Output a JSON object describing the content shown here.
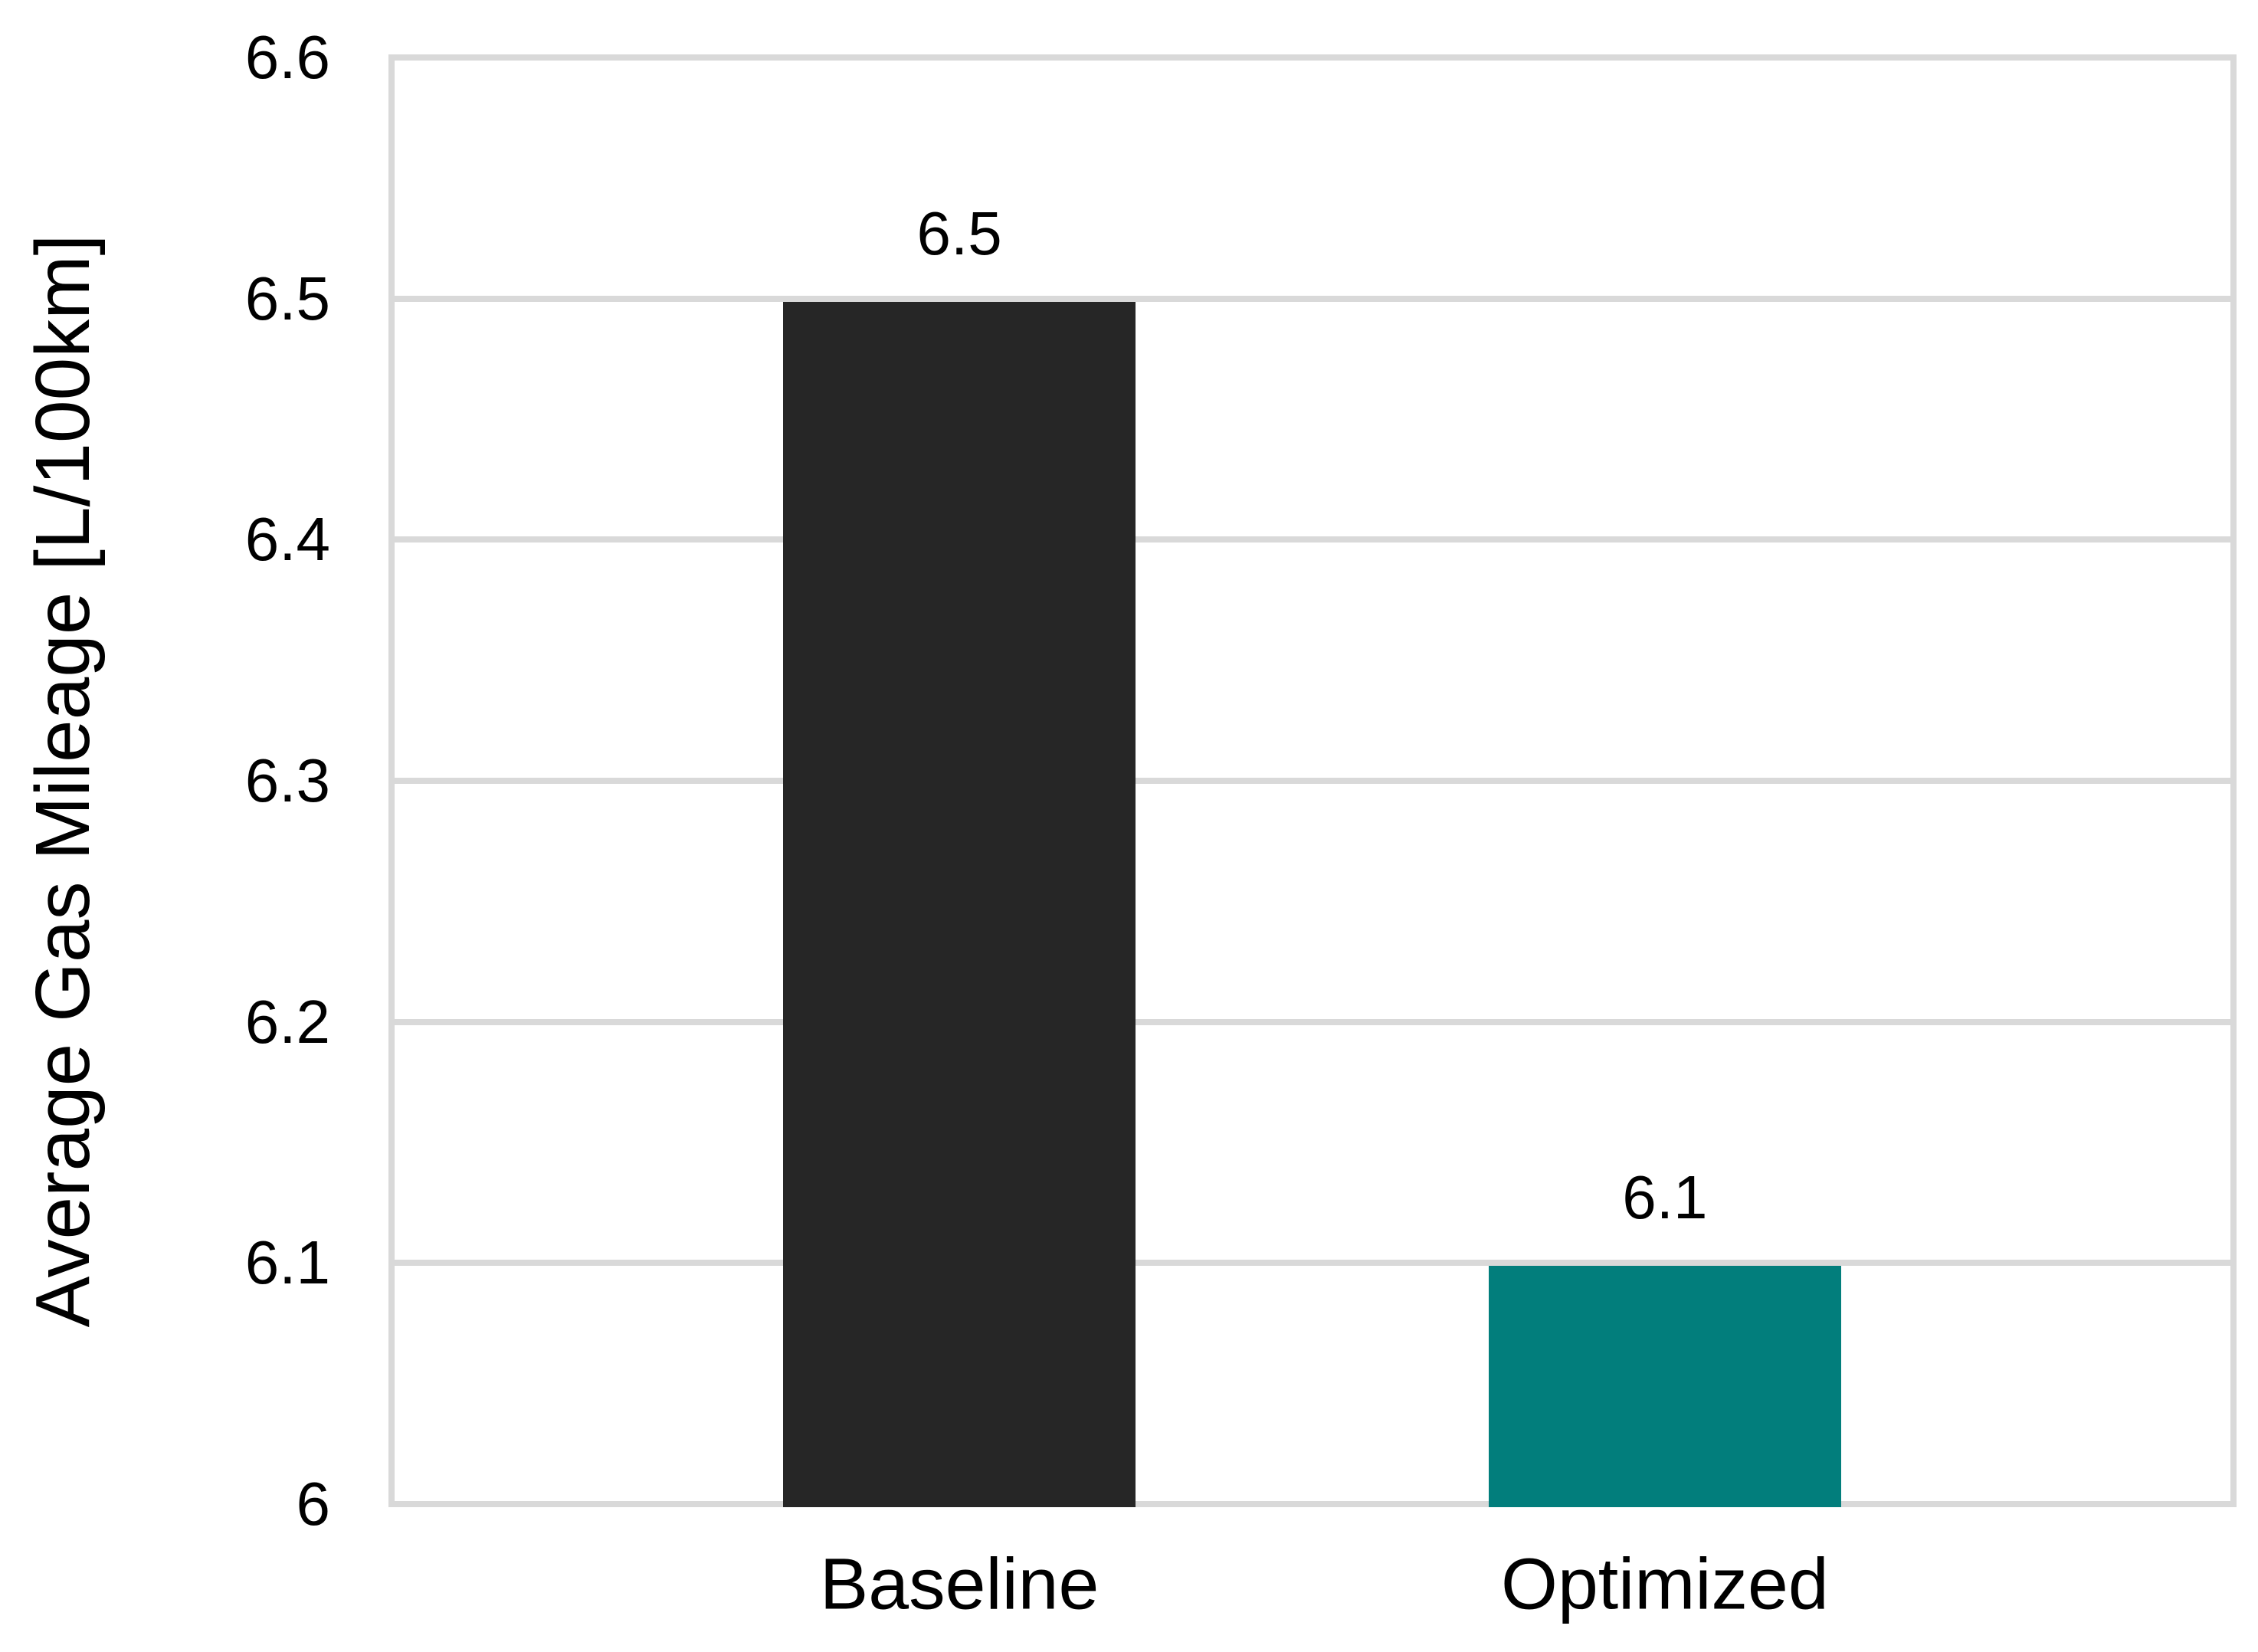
{
  "chart_data": {
    "type": "bar",
    "title": "",
    "categories": [
      "Baseline",
      "Optimized"
    ],
    "values": [
      6.5,
      6.1
    ],
    "data_labels": [
      "6.5",
      "6.1"
    ],
    "bar_colors": [
      "#262626",
      "#027E7C"
    ],
    "xlabel": "",
    "ylabel": "Average Gas Mileage [L/100km]",
    "ylim": [
      6,
      6.6
    ],
    "ytick_step": 0.1,
    "yticks": [
      "6.6",
      "6.5",
      "6.4",
      "6.3",
      "6.2",
      "6.1",
      "6"
    ],
    "grid": "horizontal gridlines on",
    "gridline_color": "#D9D9D9",
    "axis_line_color": "#D9D9D9",
    "text_color": "#000000",
    "background": "#FFFFFF",
    "legend_position": "none"
  }
}
